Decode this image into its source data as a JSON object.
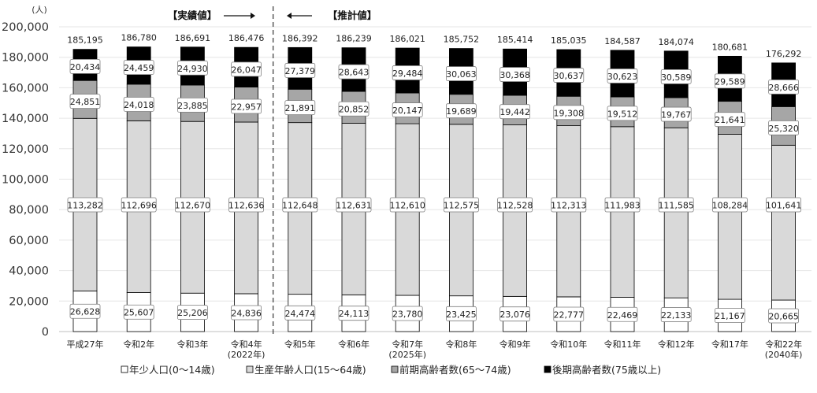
{
  "chart_data": {
    "type": "bar",
    "stacked": true,
    "y_unit": "(人)",
    "ylim": [
      0,
      200000
    ],
    "yticks": [
      "0",
      "20,000",
      "40,000",
      "60,000",
      "80,000",
      "100,000",
      "120,000",
      "140,000",
      "160,000",
      "180,000",
      "200,000"
    ],
    "grid": true,
    "legend_position": "bottom",
    "actual_label": "【実績値】",
    "forecast_label": "【推計値】",
    "categories": [
      [
        "平成27年"
      ],
      [
        "令和2年"
      ],
      [
        "令和3年"
      ],
      [
        "令和4年",
        "(2022年)"
      ],
      [
        "令和5年"
      ],
      [
        "令和6年"
      ],
      [
        "令和7年",
        "(2025年)"
      ],
      [
        "令和8年"
      ],
      [
        "令和9年"
      ],
      [
        "令和10年"
      ],
      [
        "令和11年"
      ],
      [
        "令和12年"
      ],
      [
        "令和17年"
      ],
      [
        "令和22年",
        "(2040年)"
      ]
    ],
    "totals": [
      "185,195",
      "186,780",
      "186,691",
      "186,476",
      "186,392",
      "186,239",
      "186,021",
      "185,752",
      "185,414",
      "185,035",
      "184,587",
      "184,074",
      "180,681",
      "176,292"
    ],
    "series": [
      {
        "name": "年少人口(0～14歳)",
        "color": "#ffffff",
        "values": [
          26628,
          25607,
          25206,
          24836,
          24474,
          24113,
          23780,
          23425,
          23076,
          22777,
          22469,
          22133,
          21167,
          20665
        ],
        "labels": [
          "26,628",
          "25,607",
          "25,206",
          "24,836",
          "24,474",
          "24,113",
          "23,780",
          "23,425",
          "23,076",
          "22,777",
          "22,469",
          "22,133",
          "21,167",
          "20,665"
        ]
      },
      {
        "name": "生産年齢人口(15～64歳)",
        "color": "#d9d9d9",
        "values": [
          113282,
          112696,
          112670,
          112636,
          112648,
          112631,
          112610,
          112575,
          112528,
          112313,
          111983,
          111585,
          108284,
          101641
        ],
        "labels": [
          "113,282",
          "112,696",
          "112,670",
          "112,636",
          "112,648",
          "112,631",
          "112,610",
          "112,575",
          "112,528",
          "112,313",
          "111,983",
          "111,585",
          "108,284",
          "101,641"
        ]
      },
      {
        "name": "前期高齢者数(65～74歳)",
        "color": "#a6a6a6",
        "values": [
          24851,
          24018,
          23885,
          22957,
          21891,
          20852,
          20147,
          19689,
          19442,
          19308,
          19512,
          19767,
          21641,
          25320
        ],
        "labels": [
          "24,851",
          "24,018",
          "23,885",
          "22,957",
          "21,891",
          "20,852",
          "20,147",
          "19,689",
          "19,442",
          "19,308",
          "19,512",
          "19,767",
          "21,641",
          "25,320"
        ]
      },
      {
        "name": "後期高齢者数(75歳以上)",
        "color": "#000000",
        "values": [
          20434,
          24459,
          24930,
          26047,
          27379,
          28643,
          29484,
          30063,
          30368,
          30637,
          30623,
          30589,
          29589,
          28666
        ],
        "labels": [
          "20,434",
          "24,459",
          "24,930",
          "26,047",
          "27,379",
          "28,643",
          "29,484",
          "30,063",
          "30,368",
          "30,637",
          "30,623",
          "30,589",
          "29,589",
          "28,666"
        ]
      }
    ]
  }
}
